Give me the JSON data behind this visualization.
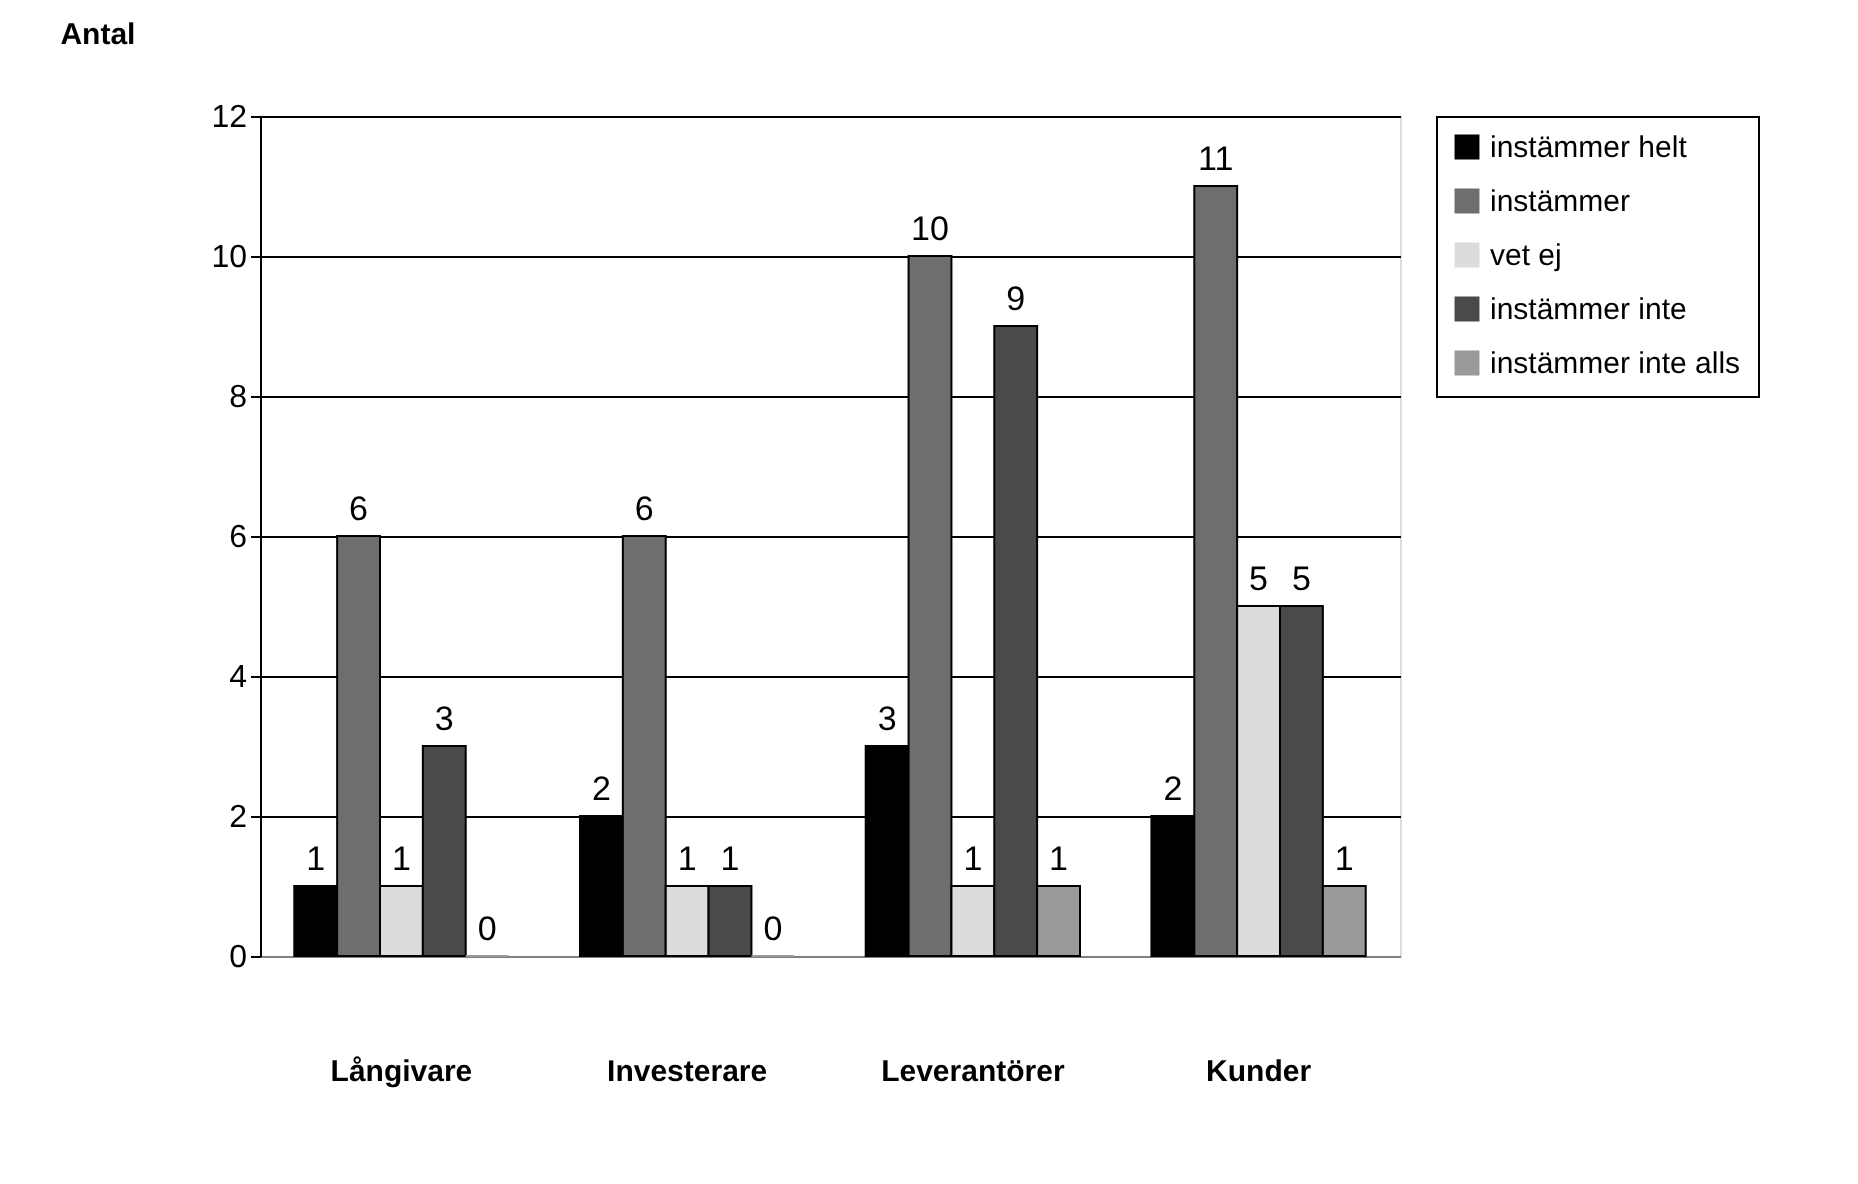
{
  "chart_data": {
    "type": "bar",
    "ylabel": "Antal",
    "categories": [
      "Långivare",
      "Investerare",
      "Leverantörer",
      "Kunder"
    ],
    "series": [
      {
        "name": "instämmer helt",
        "color": "#000000",
        "values": [
          1,
          2,
          3,
          2
        ]
      },
      {
        "name": "instämmer",
        "color": "#6e6e6e",
        "values": [
          6,
          6,
          10,
          11
        ]
      },
      {
        "name": "vet ej",
        "color": "#dcdcdc",
        "values": [
          1,
          1,
          1,
          5
        ]
      },
      {
        "name": "instämmer inte",
        "color": "#4a4a4a",
        "values": [
          3,
          1,
          9,
          5
        ]
      },
      {
        "name": "instämmer inte alls",
        "color": "#9a9a9a",
        "values": [
          0,
          0,
          1,
          1
        ]
      }
    ],
    "ylim": [
      0,
      12
    ],
    "yticks": [
      0,
      2,
      4,
      6,
      8,
      10,
      12
    ],
    "grid": "y",
    "legend": "right",
    "data_labels": true
  }
}
